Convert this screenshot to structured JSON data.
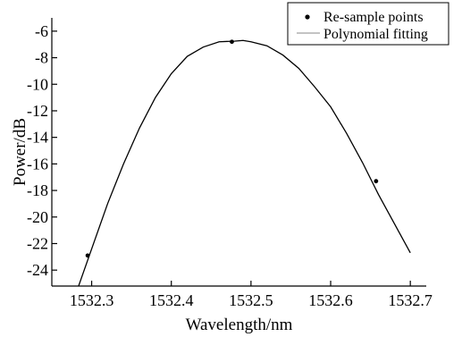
{
  "chart_data": {
    "type": "scatter",
    "title": "",
    "xlabel": "Wavelength/nm",
    "ylabel": "Power/dB",
    "xlim": [
      1532.25,
      1532.72
    ],
    "ylim": [
      -25.2,
      -5.0
    ],
    "xticks": [
      1532.3,
      1532.4,
      1532.5,
      1532.6,
      1532.7
    ],
    "xtick_labels": [
      "1532.3",
      "1532.4",
      "1532.5",
      "1532.6",
      "1532.7"
    ],
    "yticks": [
      -24,
      -22,
      -20,
      -18,
      -16,
      -14,
      -12,
      -10,
      -8,
      -6
    ],
    "ytick_labels": [
      "-24",
      "-22",
      "-20",
      "-18",
      "-16",
      "-14",
      "-12",
      "-10",
      "-8",
      "-6"
    ],
    "grid": false,
    "legend_position": "top-right",
    "series": [
      {
        "name": "Re-sample points",
        "kind": "scatter",
        "color": "#000000",
        "x": [
          1532.295,
          1532.476,
          1532.657
        ],
        "y": [
          -22.9,
          -6.8,
          -17.3
        ]
      },
      {
        "name": "Polynomial fitting",
        "kind": "line",
        "color": "#000000",
        "x": [
          1532.283,
          1532.3,
          1532.32,
          1532.34,
          1532.36,
          1532.38,
          1532.4,
          1532.42,
          1532.44,
          1532.46,
          1532.48,
          1532.49,
          1532.5,
          1532.52,
          1532.54,
          1532.56,
          1532.58,
          1532.6,
          1532.62,
          1532.64,
          1532.66,
          1532.68,
          1532.7
        ],
        "y": [
          -25.3,
          -22.4,
          -19.0,
          -16.0,
          -13.3,
          -11.0,
          -9.2,
          -7.9,
          -7.2,
          -6.8,
          -6.75,
          -6.7,
          -6.8,
          -7.1,
          -7.8,
          -8.8,
          -10.2,
          -11.7,
          -13.7,
          -15.9,
          -18.3,
          -20.5,
          -22.7
        ]
      }
    ]
  }
}
